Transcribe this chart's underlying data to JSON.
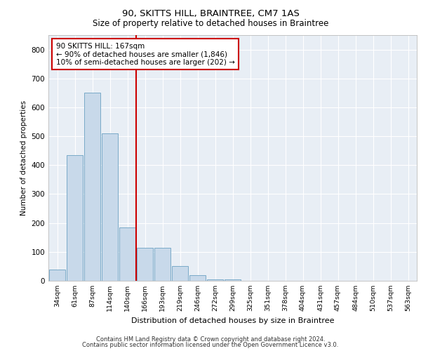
{
  "title1": "90, SKITTS HILL, BRAINTREE, CM7 1AS",
  "title2": "Size of property relative to detached houses in Braintree",
  "xlabel": "Distribution of detached houses by size in Braintree",
  "ylabel": "Number of detached properties",
  "bar_color": "#c8d9ea",
  "bar_edge_color": "#7aaac8",
  "bg_color": "#e8eef5",
  "grid_color": "#ffffff",
  "categories": [
    "34sqm",
    "61sqm",
    "87sqm",
    "114sqm",
    "140sqm",
    "166sqm",
    "193sqm",
    "219sqm",
    "246sqm",
    "272sqm",
    "299sqm",
    "325sqm",
    "351sqm",
    "378sqm",
    "404sqm",
    "431sqm",
    "457sqm",
    "484sqm",
    "510sqm",
    "537sqm",
    "563sqm"
  ],
  "values": [
    40,
    435,
    650,
    510,
    185,
    115,
    115,
    50,
    20,
    5,
    5,
    0,
    0,
    0,
    0,
    0,
    0,
    0,
    0,
    0,
    0
  ],
  "ylim": [
    0,
    850
  ],
  "yticks": [
    0,
    100,
    200,
    300,
    400,
    500,
    600,
    700,
    800
  ],
  "vline_x": 4.5,
  "vline_color": "#cc0000",
  "annotation_text": "90 SKITTS HILL: 167sqm\n← 90% of detached houses are smaller (1,846)\n10% of semi-detached houses are larger (202) →",
  "annotation_box_color": "#ffffff",
  "annotation_box_edge_color": "#cc0000",
  "footer1": "Contains HM Land Registry data © Crown copyright and database right 2024.",
  "footer2": "Contains public sector information licensed under the Open Government Licence v3.0."
}
